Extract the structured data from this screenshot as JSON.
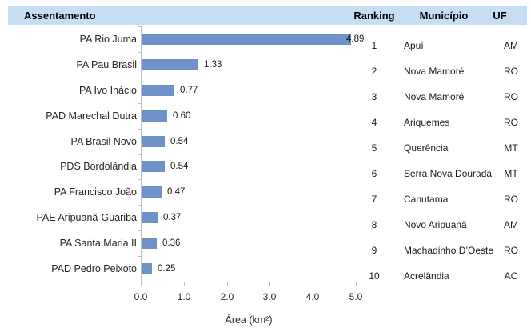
{
  "colors": {
    "header_bg": "#c6def3",
    "bar_fill": "#6e92c8",
    "axis_line": "#bfbfbf",
    "text": "#262626"
  },
  "header": {
    "assentamento": "Assentamento",
    "ranking": "Ranking",
    "municipio": "Município",
    "uf": "UF"
  },
  "chart_data": {
    "type": "bar",
    "orientation": "horizontal",
    "title": "Assentamento",
    "categories": [
      "PA Rio Juma",
      "PA Pau Brasil",
      "PA Ivo Inácio",
      "PAD Marechal Dutra",
      "PA Brasil Novo",
      "PDS Bordolândia",
      "PA Francisco João",
      "PAE Aripuanã-Guariba",
      "PA Santa Maria II",
      "PAD Pedro Peixoto"
    ],
    "values": [
      4.89,
      1.33,
      0.77,
      0.6,
      0.54,
      0.54,
      0.47,
      0.37,
      0.36,
      0.25
    ],
    "value_labels": [
      "4.89",
      "1.33",
      "0.77",
      "0.60",
      "0.54",
      "0.54",
      "0.47",
      "0.37",
      "0.36",
      "0.25"
    ],
    "xlabel": "Área (km²)",
    "x_ticks": [
      "0.0",
      "1.0",
      "2.0",
      "3.0",
      "4.0",
      "5.0"
    ],
    "xlim": [
      0,
      5
    ],
    "grid": false,
    "legend": "none"
  },
  "table": {
    "columns": [
      "Ranking",
      "Município",
      "UF"
    ],
    "rows": [
      {
        "ranking": "1",
        "municipio": "Apuí",
        "uf": "AM"
      },
      {
        "ranking": "2",
        "municipio": "Nova Mamoré",
        "uf": "RO"
      },
      {
        "ranking": "3",
        "municipio": "Nova Mamoré",
        "uf": "RO"
      },
      {
        "ranking": "4",
        "municipio": "Ariquemes",
        "uf": "RO"
      },
      {
        "ranking": "5",
        "municipio": "Querência",
        "uf": "MT"
      },
      {
        "ranking": "6",
        "municipio": "Serra Nova Dourada",
        "uf": "MT"
      },
      {
        "ranking": "7",
        "municipio": "Canutama",
        "uf": "RO"
      },
      {
        "ranking": "8",
        "municipio": "Novo Aripuanã",
        "uf": "AM"
      },
      {
        "ranking": "9",
        "municipio": "Machadinho D’Oeste",
        "uf": "RO"
      },
      {
        "ranking": "10",
        "municipio": "Acrelândia",
        "uf": "AC"
      }
    ]
  }
}
